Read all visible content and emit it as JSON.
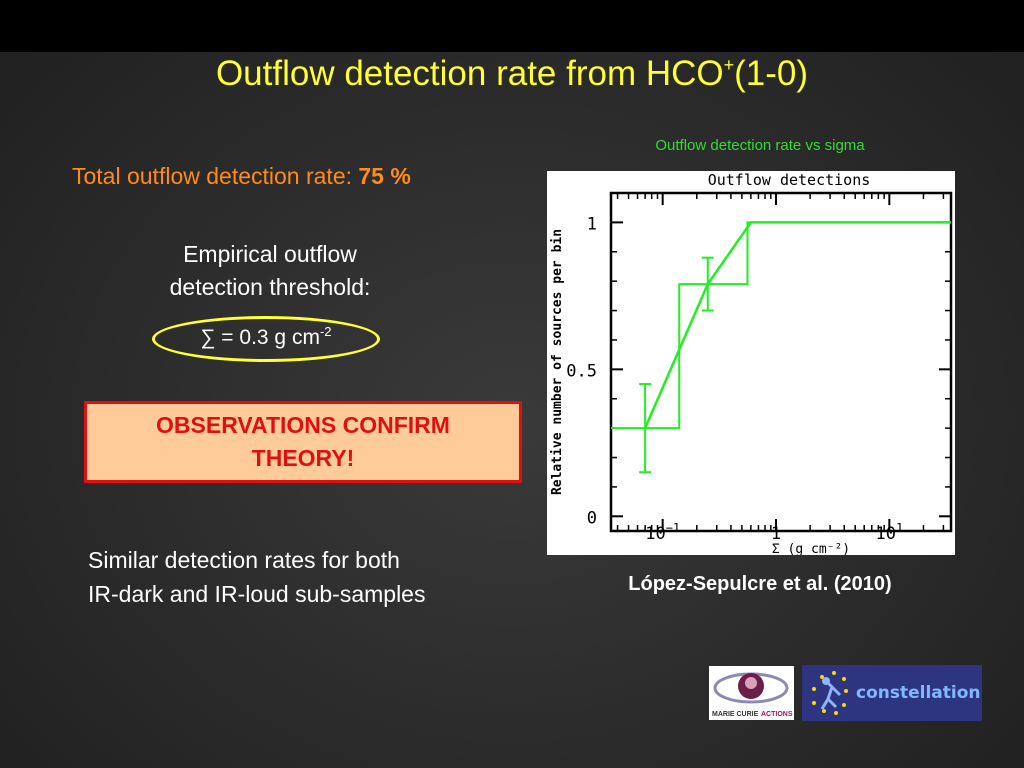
{
  "slide": {
    "title_main": "Outflow detection rate  from HCO",
    "title_sup": "+",
    "title_tail": "(1-0)",
    "chart_caption": "Outflow detection rate vs sigma",
    "total_rate_label": "Total outflow detection rate: ",
    "total_rate_value": "75 %",
    "threshold_line1": "Empirical outflow",
    "threshold_line2": "detection threshold:",
    "sigma_text": "∑ = 0.3 g cm",
    "sigma_sup": "-2",
    "confirm_line1": "OBSERVATIONS CONFIRM",
    "confirm_line2": "THEORY!",
    "similar_line1": "Similar detection rates for both",
    "similar_line2": "IR-dark and IR-loud sub-samples",
    "citation": "López-Sepulcre et al. (2010)",
    "logo_mc_line1": "MARIE CURIE",
    "logo_mc_line2": "ACTIONS",
    "logo_constellation": "constellation"
  },
  "colors": {
    "title": "#ffff33",
    "accent_orange": "#ff8c1a",
    "caption_green": "#33dd33",
    "confirm_red": "#e01010",
    "confirm_bg": "#ffcc99",
    "series_green": "#22ee22"
  },
  "chart_data": {
    "type": "line",
    "title": "Outflow detections",
    "xlabel": "Σ (g cm⁻²)",
    "ylabel": "Relative number of sources per bin",
    "x_scale": "log",
    "xlim": [
      0.035,
      35
    ],
    "ylim": [
      -0.05,
      1.1
    ],
    "x_ticks": [
      {
        "value": 0.1,
        "label": "10",
        "sup": "−1"
      },
      {
        "value": 1,
        "label": "1",
        "sup": ""
      },
      {
        "value": 10,
        "label": "10",
        "sup": "1"
      }
    ],
    "y_ticks": [
      {
        "value": 0,
        "label": "0"
      },
      {
        "value": 0.5,
        "label": "0.5"
      },
      {
        "value": 1,
        "label": "1"
      }
    ],
    "histogram": {
      "bin_edges": [
        0.035,
        0.14,
        0.35,
        0.56,
        35
      ],
      "values": [
        0.3,
        0.79,
        0.79,
        1.0
      ]
    },
    "series": [
      {
        "x": [
          0.07,
          0.25,
          0.6,
          35
        ],
        "y": [
          0.3,
          0.79,
          1.0,
          1.0
        ],
        "yerr": [
          0.15,
          0.09,
          0,
          0
        ]
      }
    ],
    "grid": false,
    "legend": "none"
  }
}
